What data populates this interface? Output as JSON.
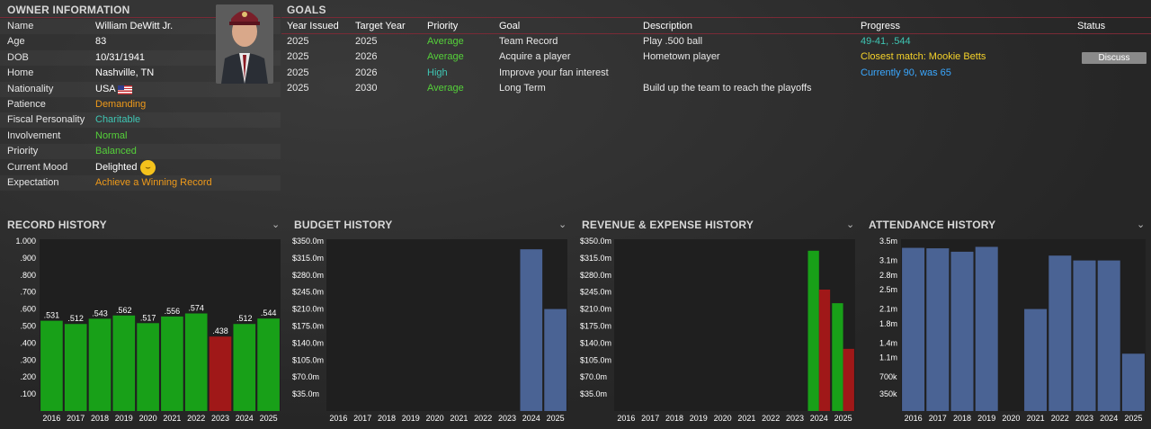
{
  "owner": {
    "title": "OWNER INFORMATION",
    "rows": [
      {
        "label": "Name",
        "value": "William DeWitt Jr.",
        "color": ""
      },
      {
        "label": "Age",
        "value": "83",
        "color": ""
      },
      {
        "label": "DOB",
        "value": "10/31/1941",
        "color": ""
      },
      {
        "label": "Home",
        "value": "Nashville, TN",
        "color": ""
      },
      {
        "label": "Nationality",
        "value": "USA",
        "color": ""
      },
      {
        "label": "Patience",
        "value": "Demanding",
        "color": "orange"
      },
      {
        "label": "Fiscal Personality",
        "value": "Charitable",
        "color": "teal"
      },
      {
        "label": "Involvement",
        "value": "Normal",
        "color": "green"
      },
      {
        "label": "Priority",
        "value": "Balanced",
        "color": "green"
      },
      {
        "label": "Current Mood",
        "value": "Delighted",
        "color": ""
      },
      {
        "label": "Expectation",
        "value": "Achieve a Winning Record",
        "color": "orange"
      }
    ],
    "flag_icon": "usa-flag-icon",
    "mood_icon": "smiley-face-icon"
  },
  "goals": {
    "title": "GOALS",
    "headers": [
      "Year Issued",
      "Target Year",
      "Priority",
      "Goal",
      "Description",
      "Progress",
      "Status"
    ],
    "rows": [
      {
        "year_issued": "2025",
        "target_year": "2025",
        "priority": "Average",
        "priority_color": "green",
        "goal": "Team Record",
        "description": "Play .500 ball",
        "progress": "49-41, .544",
        "progress_color": "teal",
        "status": ""
      },
      {
        "year_issued": "2025",
        "target_year": "2026",
        "priority": "Average",
        "priority_color": "green",
        "goal": "Acquire a player",
        "description": "Hometown player",
        "progress": "Closest match: Mookie Betts",
        "progress_color": "yellow",
        "status": "Discuss"
      },
      {
        "year_issued": "2025",
        "target_year": "2026",
        "priority": "High",
        "priority_color": "teal",
        "goal": "Improve your fan interest",
        "description": "",
        "progress": "Currently 90, was 65",
        "progress_color": "blue",
        "status": ""
      },
      {
        "year_issued": "2025",
        "target_year": "2030",
        "priority": "Average",
        "priority_color": "green",
        "goal": "Long Term",
        "description": "Build up the team to reach the playoffs",
        "progress": "",
        "progress_color": "",
        "status": ""
      }
    ]
  },
  "chart_data": [
    {
      "id": "record",
      "type": "bar",
      "title": "RECORD HISTORY",
      "categories": [
        "2016",
        "2017",
        "2018",
        "2019",
        "2020",
        "2021",
        "2022",
        "2023",
        "2024",
        "2025"
      ],
      "values": [
        0.531,
        0.512,
        0.543,
        0.562,
        0.517,
        0.556,
        0.574,
        0.438,
        0.512,
        0.544
      ],
      "data_labels": [
        ".531",
        ".512",
        ".543",
        ".562",
        ".517",
        ".556",
        ".574",
        ".438",
        ".512",
        ".544"
      ],
      "bar_colors": [
        "#18a018",
        "#18a018",
        "#18a018",
        "#18a018",
        "#18a018",
        "#18a018",
        "#18a018",
        "#a01818",
        "#18a018",
        "#18a018"
      ],
      "yticks": [
        1.0,
        0.9,
        0.8,
        0.7,
        0.6,
        0.5,
        0.4,
        0.3,
        0.2,
        0.1
      ],
      "ytick_labels": [
        "1.000",
        ".900",
        ".800",
        ".700",
        ".600",
        ".500",
        ".400",
        ".300",
        ".200",
        ".100"
      ],
      "ylim": [
        0,
        1.0
      ]
    },
    {
      "id": "budget",
      "type": "bar",
      "title": "BUDGET HISTORY",
      "categories": [
        "2016",
        "2017",
        "2018",
        "2019",
        "2020",
        "2021",
        "2022",
        "2023",
        "2024",
        "2025"
      ],
      "values": [
        0,
        0,
        0,
        0,
        0,
        0,
        0,
        0,
        333,
        210
      ],
      "bar_colors": [
        "#4a6394"
      ],
      "yticks": [
        350,
        315,
        280,
        245,
        210,
        175,
        140,
        105,
        70,
        35
      ],
      "ytick_labels": [
        "$350.0m",
        "$315.0m",
        "$280.0m",
        "$245.0m",
        "$210.0m",
        "$175.0m",
        "$140.0m",
        "$105.0m",
        "$70.0m",
        "$35.0m"
      ],
      "ylim": [
        0,
        350
      ]
    },
    {
      "id": "revenue",
      "type": "bar",
      "title": "REVENUE & EXPENSE HISTORY",
      "categories": [
        "2016",
        "2017",
        "2018",
        "2019",
        "2020",
        "2021",
        "2022",
        "2023",
        "2024",
        "2025"
      ],
      "series": [
        {
          "values": [
            0,
            0,
            0,
            0,
            0,
            0,
            0,
            0,
            330,
            222
          ],
          "color": "#18a018"
        },
        {
          "values": [
            0,
            0,
            0,
            0,
            0,
            0,
            0,
            0,
            250,
            128
          ],
          "color": "#a01818"
        }
      ],
      "yticks": [
        350,
        315,
        280,
        245,
        210,
        175,
        140,
        105,
        70,
        35
      ],
      "ytick_labels": [
        "$350.0m",
        "$315.0m",
        "$280.0m",
        "$245.0m",
        "$210.0m",
        "$175.0m",
        "$140.0m",
        "$105.0m",
        "$70.0m",
        "$35.0m"
      ],
      "ylim": [
        0,
        350
      ]
    },
    {
      "id": "attendance",
      "type": "bar",
      "title": "ATTENDANCE HISTORY",
      "categories": [
        "2016",
        "2017",
        "2018",
        "2019",
        "2020",
        "2021",
        "2022",
        "2023",
        "2024",
        "2025"
      ],
      "values": [
        3.36,
        3.35,
        3.28,
        3.38,
        0,
        2.1,
        3.2,
        3.1,
        3.1,
        1.18
      ],
      "bar_colors": [
        "#4a6394"
      ],
      "yticks": [
        3.5,
        3.1,
        2.8,
        2.5,
        2.1,
        1.8,
        1.4,
        1.1,
        0.7,
        0.35
      ],
      "ytick_labels": [
        "3.5m",
        "3.1m",
        "2.8m",
        "2.5m",
        "2.1m",
        "1.8m",
        "1.4m",
        "1.1m",
        "700k",
        "350k"
      ],
      "ylim": [
        0,
        3.5
      ]
    }
  ]
}
